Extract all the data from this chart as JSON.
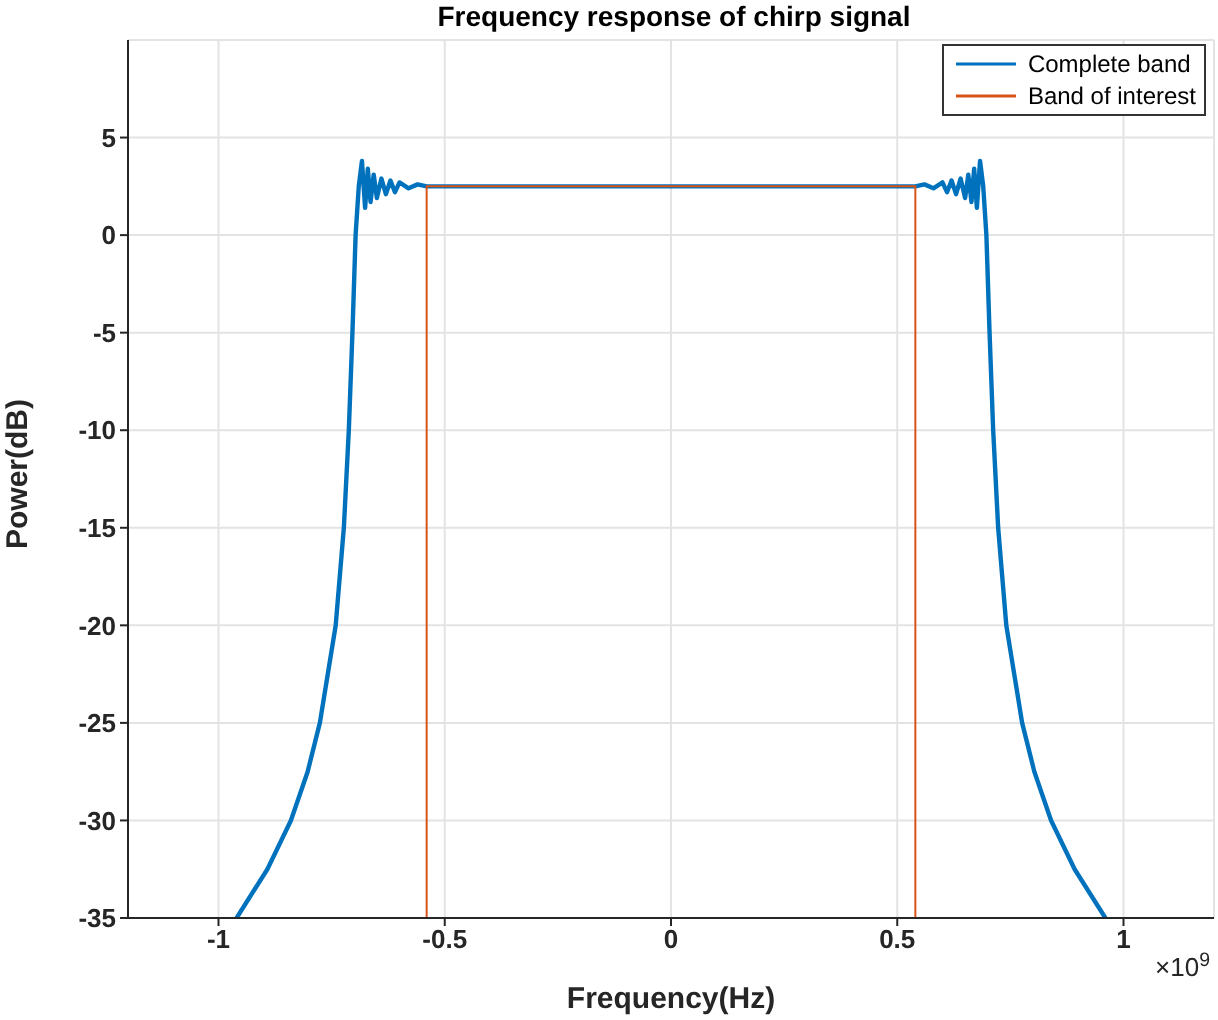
{
  "chart_data": {
    "type": "line",
    "title": "Frequency response of chirp signal",
    "xlabel": "Frequency(Hz)",
    "ylabel": "Power(dB)",
    "annotations": [
      "×10$^{9}$"
    ],
    "xlim": [
      -1.2,
      1.2
    ],
    "xticks": [
      -1,
      -0.5,
      0,
      0.5,
      1
    ],
    "ylim": [
      -35,
      10
    ],
    "yticks": [
      -35,
      -30,
      -25,
      -20,
      -15,
      -10,
      -5,
      0,
      5
    ],
    "grid": true,
    "legend": "top right",
    "marker": "none",
    "line_style": "solid",
    "series": [
      {
        "name": "Complete band",
        "color": "#0072bd",
        "x": [
          -0.96,
          -0.892,
          -0.84,
          -0.803,
          -0.776,
          -0.741,
          -0.723,
          -0.712,
          -0.704,
          -0.697,
          -0.69,
          -0.683,
          -0.676,
          -0.67,
          -0.664,
          -0.657,
          -0.65,
          -0.64,
          -0.63,
          -0.62,
          -0.61,
          -0.6,
          -0.58,
          -0.56,
          -0.54,
          0,
          0.54,
          0.56,
          0.58,
          0.6,
          0.61,
          0.62,
          0.63,
          0.64,
          0.65,
          0.657,
          0.664,
          0.67,
          0.676,
          0.683,
          0.69,
          0.697,
          0.704,
          0.712,
          0.723,
          0.741,
          0.776,
          0.803,
          0.84,
          0.892,
          0.96
        ],
        "values": [
          -35,
          -32.5,
          -30,
          -27.5,
          -25,
          -20,
          -15,
          -10,
          -5,
          0,
          2.5,
          3.8,
          1.4,
          3.4,
          1.7,
          3.1,
          1.9,
          2.9,
          2.1,
          2.8,
          2.2,
          2.7,
          2.4,
          2.6,
          2.5,
          2.5,
          2.5,
          2.6,
          2.4,
          2.7,
          2.2,
          2.8,
          2.1,
          2.9,
          1.9,
          3.1,
          1.7,
          3.4,
          1.4,
          3.8,
          2.5,
          0,
          -5,
          -10,
          -15,
          -20,
          -25,
          -27.5,
          -30,
          -32.5,
          -35
        ]
      },
      {
        "name": "Band of interest",
        "color": "#d95319",
        "x": [
          -0.54,
          -0.54,
          0.54,
          0.54
        ],
        "values": [
          -35,
          2.5,
          2.5,
          -35
        ]
      }
    ]
  }
}
